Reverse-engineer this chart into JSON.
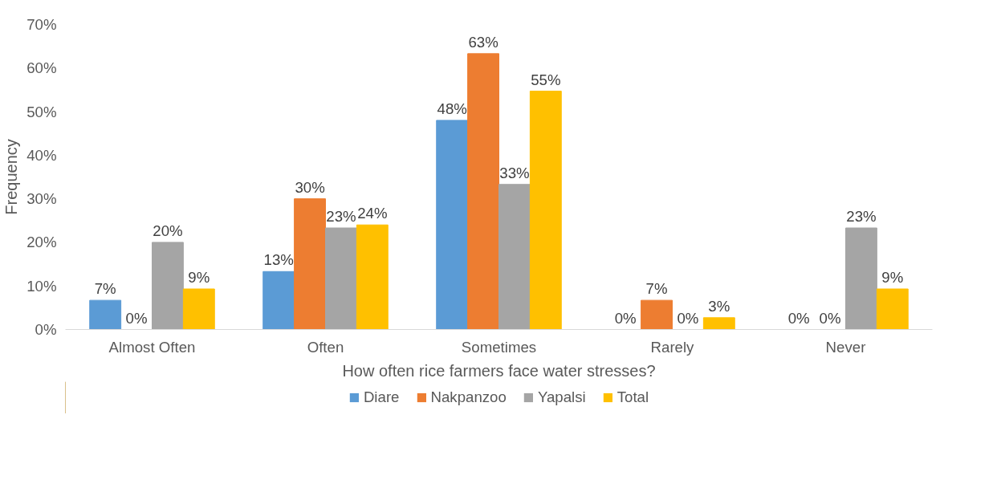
{
  "chart_data": {
    "type": "bar",
    "xlabel": "How often rice farmers face water stresses?",
    "ylabel": "Frequency",
    "categories": [
      "Almost Often",
      "Often",
      "Sometimes",
      "Rarely",
      "Never"
    ],
    "series": [
      {
        "name": "Diare",
        "color": "#5b9bd5",
        "values": [
          6.7,
          13.3,
          48,
          0,
          0
        ],
        "value_labels": [
          "7%",
          "13%",
          "48%",
          "0%",
          "0%"
        ]
      },
      {
        "name": "Nakpanzoo",
        "color": "#ed7d31",
        "values": [
          0,
          30,
          63.3,
          6.7,
          0
        ],
        "value_labels": [
          "0%",
          "30%",
          "63%",
          "7%",
          "0%"
        ]
      },
      {
        "name": "Yapalsi",
        "color": "#a5a5a5",
        "values": [
          20,
          23.3,
          33.3,
          0,
          23.3
        ],
        "value_labels": [
          "20%",
          "23%",
          "33%",
          "0%",
          "23%"
        ]
      },
      {
        "name": "Total",
        "color": "#ffc000",
        "values": [
          9.3,
          24,
          54.7,
          2.7,
          9.3
        ],
        "value_labels": [
          "9%",
          "24%",
          "55%",
          "3%",
          "9%"
        ]
      }
    ],
    "ylim": [
      0,
      70
    ],
    "yticks": [
      {
        "value": 0,
        "label": "0%"
      },
      {
        "value": 10,
        "label": "10%"
      },
      {
        "value": 20,
        "label": "20%"
      },
      {
        "value": 30,
        "label": "30%"
      },
      {
        "value": 40,
        "label": "40%"
      },
      {
        "value": 50,
        "label": "50%"
      },
      {
        "value": 60,
        "label": "60%"
      },
      {
        "value": 70,
        "label": "70%"
      }
    ],
    "grid": false,
    "legend": "bottom"
  }
}
